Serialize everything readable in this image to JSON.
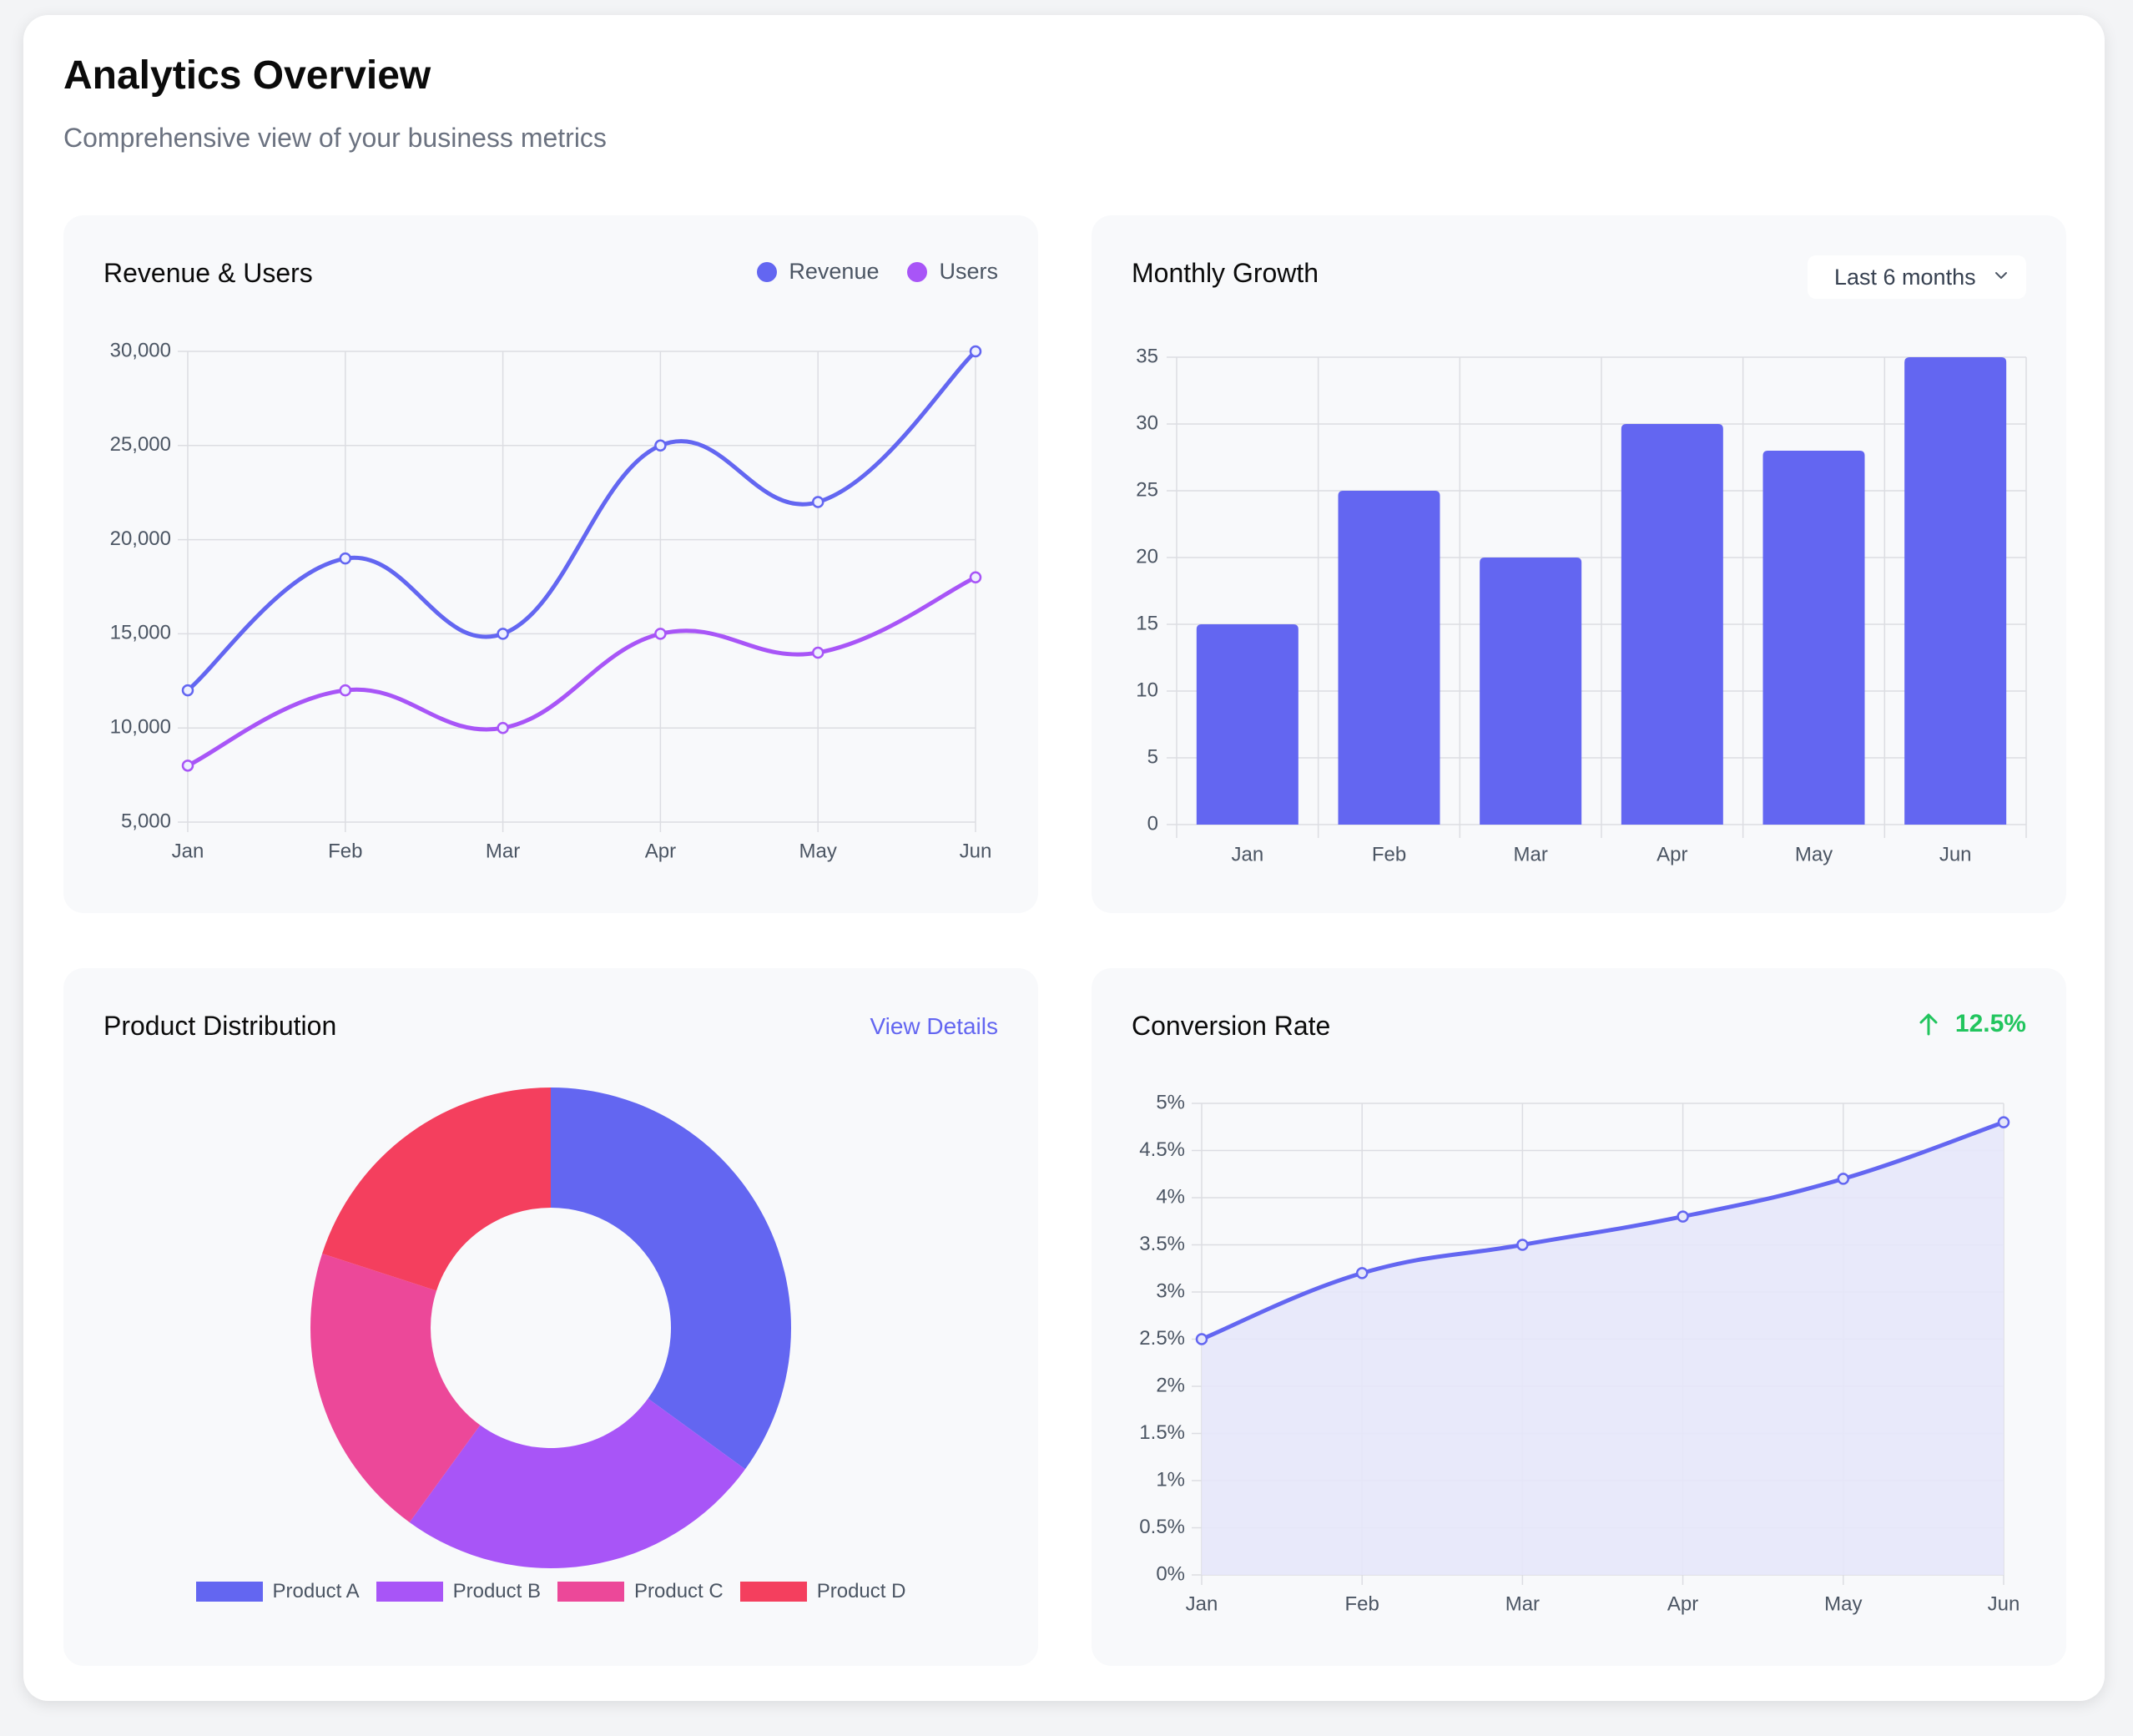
{
  "header": {
    "title": "Analytics Overview",
    "subtitle": "Comprehensive view of your business metrics"
  },
  "panels": {
    "revenue_users": {
      "title": "Revenue & Users",
      "legend": [
        {
          "label": "Revenue",
          "color": "#6366f1"
        },
        {
          "label": "Users",
          "color": "#a855f7"
        }
      ]
    },
    "monthly_growth": {
      "title": "Monthly Growth",
      "select_value": "Last 6 months"
    },
    "product_distribution": {
      "title": "Product Distribution",
      "link_label": "View Details"
    },
    "conversion_rate": {
      "title": "Conversion Rate",
      "change": "12.5%",
      "change_icon": "arrow-up-icon",
      "change_color": "#22c55e"
    }
  },
  "chart_data": [
    {
      "type": "line",
      "title": "Revenue & Users",
      "categories": [
        "Jan",
        "Feb",
        "Mar",
        "Apr",
        "May",
        "Jun"
      ],
      "series": [
        {
          "name": "Revenue",
          "color": "#6366f1",
          "values": [
            12000,
            19000,
            15000,
            25000,
            22000,
            30000
          ]
        },
        {
          "name": "Users",
          "color": "#a855f7",
          "values": [
            8000,
            12000,
            10000,
            15000,
            14000,
            18000
          ]
        }
      ],
      "ylim": [
        5000,
        30000
      ],
      "yticks": [
        5000,
        10000,
        15000,
        20000,
        25000,
        30000
      ],
      "ytick_labels": [
        "5,000",
        "10,000",
        "15,000",
        "20,000",
        "25,000",
        "30,000"
      ],
      "legend": "top-right",
      "grid": true
    },
    {
      "type": "bar",
      "title": "Monthly Growth",
      "categories": [
        "Jan",
        "Feb",
        "Mar",
        "Apr",
        "May",
        "Jun"
      ],
      "values": [
        15,
        25,
        20,
        30,
        28,
        35
      ],
      "color": "#6366f1",
      "ylim": [
        0,
        35
      ],
      "yticks": [
        0,
        5,
        10,
        15,
        20,
        25,
        30,
        35
      ],
      "ytick_labels": [
        "0",
        "5",
        "10",
        "15",
        "20",
        "25",
        "30",
        "35"
      ],
      "grid": true
    },
    {
      "type": "pie",
      "variant": "doughnut",
      "title": "Product Distribution",
      "labels": [
        "Product A",
        "Product B",
        "Product C",
        "Product D"
      ],
      "values": [
        35,
        25,
        20,
        20
      ],
      "colors": [
        "#6366f1",
        "#a855f7",
        "#ec4899",
        "#f43f5e"
      ],
      "legend": "bottom"
    },
    {
      "type": "area",
      "title": "Conversion Rate",
      "categories": [
        "Jan",
        "Feb",
        "Mar",
        "Apr",
        "May",
        "Jun"
      ],
      "values": [
        2.5,
        3.2,
        3.5,
        3.8,
        4.2,
        4.8
      ],
      "color": "#6366f1",
      "fill": "#e6e7f9",
      "ylim": [
        0,
        5
      ],
      "yticks": [
        0,
        0.5,
        1,
        1.5,
        2,
        2.5,
        3,
        3.5,
        4,
        4.5,
        5
      ],
      "ytick_labels": [
        "0%",
        "0.5%",
        "1%",
        "1.5%",
        "2%",
        "2.5%",
        "3%",
        "3.5%",
        "4%",
        "4.5%",
        "5%"
      ],
      "grid": true
    }
  ]
}
